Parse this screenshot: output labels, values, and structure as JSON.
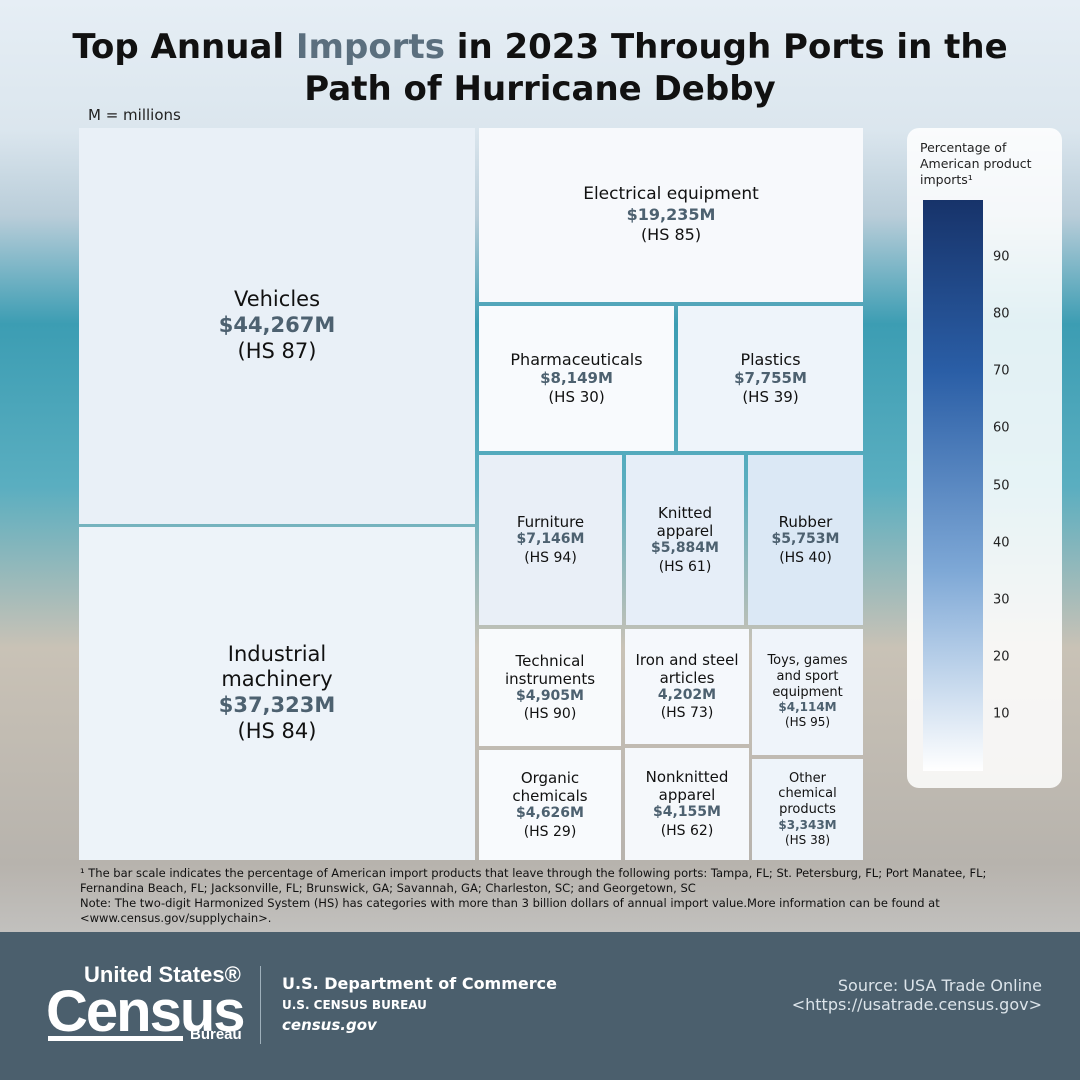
{
  "chart_data": {
    "type": "treemap",
    "title": [
      "Top Annual ",
      "Imports",
      " in 2023 Through Ports in the Path of Hurricane Debby"
    ],
    "unit_note": "M = millions",
    "categories": [
      "Vehicles",
      "Industrial machinery",
      "Electrical equipment",
      "Pharmaceuticals",
      "Plastics",
      "Furniture",
      "Knitted apparel",
      "Rubber",
      "Technical instruments",
      "Iron and steel articles",
      "Toys, games and sport equipment",
      "Organic chemicals",
      "Nonknitted apparel",
      "Other chemical products"
    ],
    "values": [
      44267,
      37323,
      19235,
      8149,
      7755,
      7146,
      5884,
      5753,
      4905,
      4202,
      4114,
      4626,
      4155,
      3343
    ],
    "value_labels": [
      "$44,267M",
      "$37,323M",
      "$19,235M",
      "$8,149M",
      "$7,755M",
      "$7,146M",
      "$5,884M",
      "$5,753M",
      "$4,905M",
      "4,202M",
      "$4,114M",
      "$4,626M",
      "$4,155M",
      "$3,343M"
    ],
    "hs_codes": [
      "(HS 87)",
      "(HS 84)",
      "(HS 85)",
      "(HS 30)",
      "(HS 39)",
      "(HS 94)",
      "(HS 61)",
      "(HS 40)",
      "(HS 90)",
      "(HS 73)",
      "(HS 95)",
      "(HS 29)",
      "(HS 62)",
      "(HS 38)"
    ],
    "colors": [
      "#e9f0f7",
      "#edf3f9",
      "#f7f9fc",
      "#f8fafd",
      "#eef4fa",
      "#e9eff7",
      "#e6eef8",
      "#dbe8f5",
      "#f8fafc",
      "#f5f8fc",
      "#eff4fa",
      "#f8fafd",
      "#f5f8fb",
      "#eef4fa"
    ],
    "legend": {
      "title": "Percentage of American product imports¹",
      "ylim": [
        0,
        100
      ],
      "yticks": [
        10,
        20,
        30,
        40,
        50,
        60,
        70,
        80,
        90
      ]
    }
  },
  "footnotes": [
    "¹ The bar scale indicates the percentage of American import products that leave through the following ports: Tampa, FL; St. Petersburg, FL; Port Manatee, FL; Fernandina Beach, FL; Jacksonville, FL; Brunswick, GA; Savannah, GA; Charleston, SC; and Georgetown, SC",
    "Note: The two-digit Harmonized System (HS) has categories with more than 3 billion dollars of annual import value.More information can be found at <www.census.gov/supplychain>."
  ],
  "footer": {
    "logo": [
      "United States®",
      "Census",
      "Bureau"
    ],
    "department": "U.S. Department of Commerce",
    "bureau": "U.S. CENSUS BUREAU",
    "site": "census.gov",
    "source": "Source: USA Trade Online",
    "source_url": "<https://usatrade.census.gov>"
  }
}
